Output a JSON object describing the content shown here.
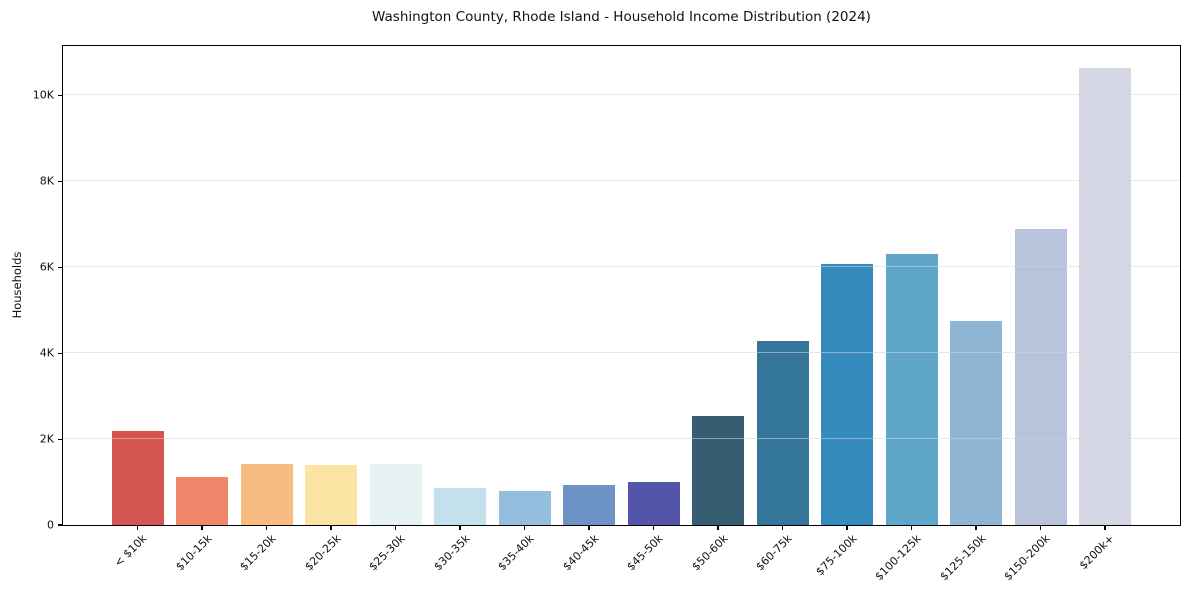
{
  "chart_data": {
    "type": "bar",
    "title": "Washington County, Rhode Island - Household Income Distribution (2024)",
    "xlabel": "",
    "ylabel": "Households",
    "categories": [
      "< $10k",
      "$10-15k",
      "$15-20k",
      "$20-25k",
      "$25-30k",
      "$30-35k",
      "$35-40k",
      "$40-45k",
      "$45-50k",
      "$50-60k",
      "$60-75k",
      "$75-100k",
      "$100-125k",
      "$125-150k",
      "$150-200k",
      "$200k+"
    ],
    "values": [
      2180,
      1130,
      1430,
      1400,
      1410,
      870,
      800,
      940,
      1010,
      2530,
      4280,
      6080,
      6300,
      4740,
      6890,
      10650
    ],
    "bar_colors": [
      "#d4544f",
      "#f0876a",
      "#f9bc80",
      "#fce4a4",
      "#e6f2f3",
      "#c3e0ec",
      "#94bedd",
      "#6d93c6",
      "#5355a8",
      "#375d72",
      "#347699",
      "#358bbd",
      "#5ea7c8",
      "#8fb5d4",
      "#b8c4dc",
      "#d6d7e4"
    ],
    "ytick_values": [
      0,
      2000,
      4000,
      6000,
      8000,
      10000
    ],
    "ytick_labels": [
      "0",
      "2K",
      "4K",
      "6K",
      "8K",
      "10K"
    ],
    "ylim": [
      0,
      11150
    ],
    "grid": "horizontal-light-gray-over-bars",
    "legend": "none"
  }
}
